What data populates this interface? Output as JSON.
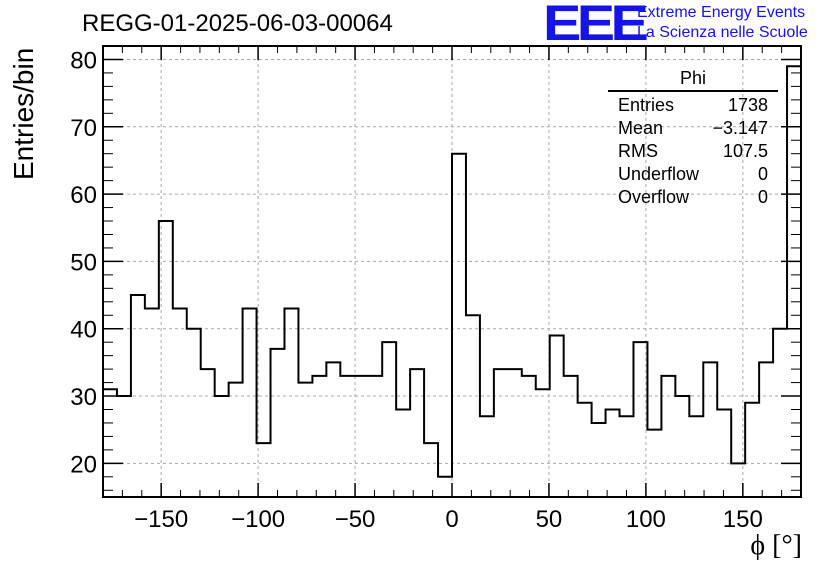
{
  "title": "REGG-01-2025-06-03-00064",
  "logo": {
    "text": "EEE",
    "line1": "Extreme Energy Events",
    "line2": "La Scienza nelle Scuole",
    "color": "#1414e6"
  },
  "stats": {
    "name": "Phi",
    "rows": [
      {
        "label": "Entries",
        "value": "1738"
      },
      {
        "label": "Mean",
        "value": "−3.147"
      },
      {
        "label": "RMS",
        "value": "107.5"
      },
      {
        "label": "Underflow",
        "value": "0"
      },
      {
        "label": "Overflow",
        "value": "0"
      }
    ]
  },
  "chart_data": {
    "type": "bar",
    "style": "step-histogram",
    "title": "REGG-01-2025-06-03-00064",
    "xlabel": "ϕ [°]",
    "ylabel": "Entries/bin",
    "xlim": [
      -180,
      180
    ],
    "ylim": [
      15,
      82
    ],
    "bin_width": 7.2,
    "bin_edges_start": -180,
    "values": [
      31,
      30,
      45,
      43,
      56,
      43,
      40,
      34,
      30,
      32,
      43,
      23,
      37,
      43,
      32,
      33,
      35,
      33,
      33,
      33,
      38,
      28,
      34,
      23,
      18,
      66,
      42,
      27,
      34,
      34,
      33,
      31,
      39,
      33,
      29,
      26,
      28,
      27,
      38,
      25,
      33,
      30,
      27,
      35,
      28,
      20,
      29,
      35,
      40,
      79
    ],
    "xticks": [
      -150,
      -100,
      -50,
      0,
      50,
      100,
      150
    ],
    "xtick_labels": [
      "−150",
      "−100",
      "−50",
      "0",
      "50",
      "100",
      "150"
    ],
    "yticks": [
      20,
      30,
      40,
      50,
      60,
      70,
      80
    ],
    "grid": true,
    "line_color": "#000000",
    "grid_color": "#aaaaaa"
  }
}
